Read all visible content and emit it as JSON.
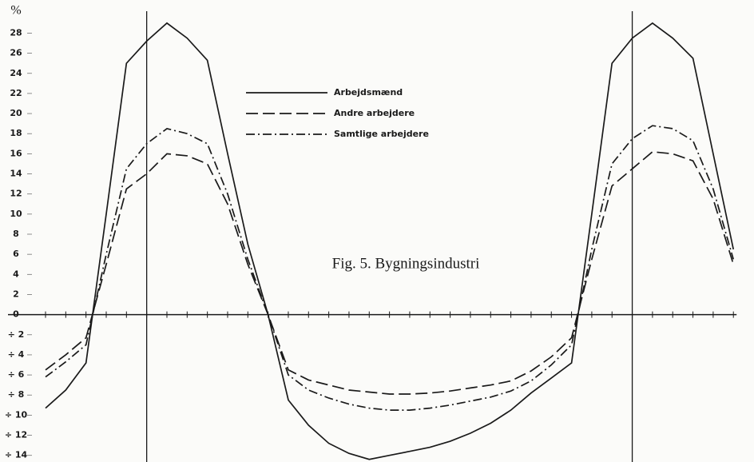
{
  "chart_data": {
    "type": "line",
    "title": "Fig. 5. Bygningsindustri",
    "y_label": "%",
    "categories": [
      null,
      null,
      null,
      null,
      null,
      null,
      null,
      null,
      null,
      null,
      null,
      null,
      null,
      null,
      null,
      null,
      null,
      null,
      null,
      null,
      null,
      null,
      null,
      null,
      null,
      null,
      null,
      null,
      null,
      null,
      null,
      null,
      null,
      null,
      null
    ],
    "series": [
      {
        "name": "Arbejdsmænd",
        "color": "#1a1a1a",
        "style": "solid",
        "values": [
          -9.3,
          -7.5,
          -4.8,
          10,
          25,
          27.2,
          29,
          27.5,
          25.3,
          16,
          7,
          0,
          -8.5,
          -11,
          -12.8,
          -13.8,
          -14.4,
          -14,
          -13.6,
          -13.2,
          -12.6,
          -11.8,
          -10.8,
          -9.5,
          -7.8,
          -6.3,
          -4.8,
          10,
          25,
          27.5,
          29,
          27.5,
          25.5,
          16,
          6.5
        ]
      },
      {
        "name": "Andre arbejdere",
        "color": "#1a1a1a",
        "style": "dashed",
        "values": [
          -5.5,
          -4,
          -2.3,
          5,
          12.5,
          14,
          16,
          15.8,
          15,
          11,
          5,
          0,
          -5.5,
          -6.5,
          -7,
          -7.5,
          -7.7,
          -7.9,
          -7.9,
          -7.8,
          -7.6,
          -7.3,
          -7,
          -6.6,
          -5.6,
          -4.2,
          -2.3,
          5.5,
          12.8,
          14.5,
          16.2,
          16,
          15.3,
          11.5,
          5
        ]
      },
      {
        "name": "Samtlige arbejdere",
        "color": "#1a1a1a",
        "style": "dashdot",
        "values": [
          -6.2,
          -4.7,
          -3,
          6,
          14.5,
          17,
          18.5,
          18,
          17,
          12,
          5.5,
          0,
          -6,
          -7.5,
          -8.3,
          -8.9,
          -9.3,
          -9.5,
          -9.5,
          -9.3,
          -9,
          -8.6,
          -8.2,
          -7.6,
          -6.6,
          -5,
          -3,
          6.5,
          15,
          17.5,
          18.8,
          18.5,
          17.3,
          12.5,
          5.5
        ]
      }
    ],
    "ylim": [
      -14.5,
      30.5
    ],
    "yticks": [
      28,
      26,
      24,
      22,
      20,
      18,
      16,
      14,
      12,
      10,
      8,
      6,
      4,
      2,
      0,
      {
        "value": -2,
        "label": "÷ 2"
      },
      {
        "value": -4,
        "label": "÷ 4"
      },
      {
        "value": -6,
        "label": "÷ 6"
      },
      {
        "value": -8,
        "label": "÷ 8"
      },
      {
        "value": -10,
        "label": "÷ 10"
      },
      {
        "value": -12,
        "label": "÷ 12"
      },
      {
        "value": -14,
        "label": "÷ 14"
      }
    ],
    "grid": false
  }
}
